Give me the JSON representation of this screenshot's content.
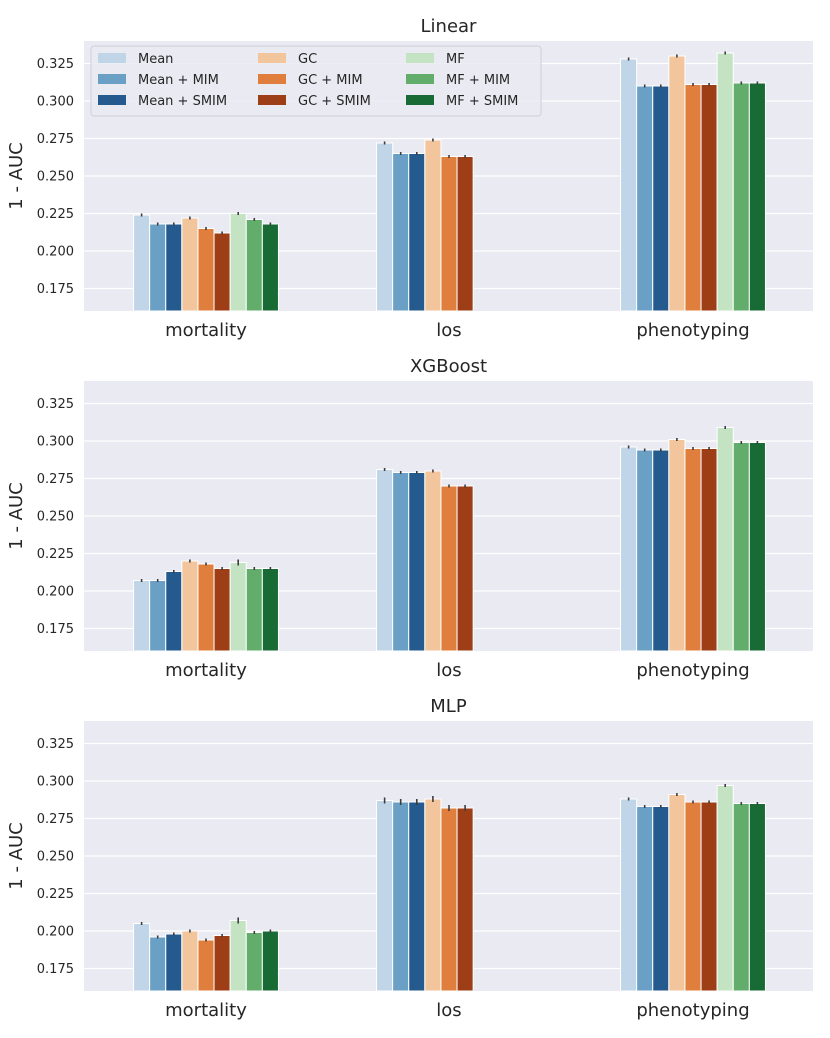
{
  "chart_data": [
    {
      "type": "bar",
      "title": "Linear",
      "xlabel": "",
      "ylabel": "1 - AUC",
      "ylim": [
        0.16,
        0.34
      ],
      "yticks": [
        0.175,
        0.2,
        0.225,
        0.25,
        0.275,
        0.3,
        0.325
      ],
      "ytick_labels": [
        "0.175",
        "0.200",
        "0.225",
        "0.250",
        "0.275",
        "0.300",
        "0.325"
      ],
      "categories": [
        "mortality",
        "los",
        "phenotyping"
      ],
      "grid": true,
      "series": [
        {
          "name": "Mean",
          "color": "#c0d5e8",
          "values": [
            0.224,
            0.272,
            0.328
          ],
          "errors": [
            0.001,
            0.001,
            0.001
          ]
        },
        {
          "name": "Mean + MIM",
          "color": "#6a9fc6",
          "values": [
            0.218,
            0.265,
            0.31
          ],
          "errors": [
            0.001,
            0.001,
            0.001
          ]
        },
        {
          "name": "Mean + SMIM",
          "color": "#255a8f",
          "values": [
            0.218,
            0.265,
            0.31
          ],
          "errors": [
            0.001,
            0.001,
            0.001
          ]
        },
        {
          "name": "GC",
          "color": "#f2c59c",
          "values": [
            0.222,
            0.274,
            0.33
          ],
          "errors": [
            0.001,
            0.001,
            0.001
          ]
        },
        {
          "name": "GC + MIM",
          "color": "#e07f3d",
          "values": [
            0.215,
            0.263,
            0.311
          ],
          "errors": [
            0.001,
            0.001,
            0.001
          ]
        },
        {
          "name": "GC + SMIM",
          "color": "#9e3e16",
          "values": [
            0.212,
            0.263,
            0.311
          ],
          "errors": [
            0.001,
            0.001,
            0.001
          ]
        },
        {
          "name": "MF",
          "color": "#c4e3c2",
          "values": [
            0.225,
            null,
            0.332
          ],
          "errors": [
            0.001,
            0,
            0.001
          ]
        },
        {
          "name": "MF + MIM",
          "color": "#62ad6b",
          "values": [
            0.221,
            null,
            0.312
          ],
          "errors": [
            0.001,
            0,
            0.001
          ]
        },
        {
          "name": "MF + SMIM",
          "color": "#186b34",
          "values": [
            0.218,
            null,
            0.312
          ],
          "errors": [
            0.001,
            0,
            0.001
          ]
        }
      ],
      "legend": {
        "position": "top-left",
        "columns": 3,
        "entries": [
          "Mean",
          "Mean + MIM",
          "Mean + SMIM",
          "GC",
          "GC + MIM",
          "GC + SMIM",
          "MF",
          "MF + MIM",
          "MF + SMIM"
        ]
      }
    },
    {
      "type": "bar",
      "title": "XGBoost",
      "xlabel": "",
      "ylabel": "1 - AUC",
      "ylim": [
        0.16,
        0.34
      ],
      "yticks": [
        0.175,
        0.2,
        0.225,
        0.25,
        0.275,
        0.3,
        0.325
      ],
      "ytick_labels": [
        "0.175",
        "0.200",
        "0.225",
        "0.250",
        "0.275",
        "0.300",
        "0.325"
      ],
      "categories": [
        "mortality",
        "los",
        "phenotyping"
      ],
      "grid": true,
      "series": [
        {
          "name": "Mean",
          "color": "#c0d5e8",
          "values": [
            0.207,
            0.281,
            0.296
          ],
          "errors": [
            0.001,
            0.001,
            0.001
          ]
        },
        {
          "name": "Mean + MIM",
          "color": "#6a9fc6",
          "values": [
            0.207,
            0.279,
            0.294
          ],
          "errors": [
            0.001,
            0.001,
            0.001
          ]
        },
        {
          "name": "Mean + SMIM",
          "color": "#255a8f",
          "values": [
            0.213,
            0.279,
            0.294
          ],
          "errors": [
            0.001,
            0.001,
            0.001
          ]
        },
        {
          "name": "GC",
          "color": "#f2c59c",
          "values": [
            0.22,
            0.28,
            0.301
          ],
          "errors": [
            0.001,
            0.001,
            0.001
          ]
        },
        {
          "name": "GC + MIM",
          "color": "#e07f3d",
          "values": [
            0.218,
            0.27,
            0.295
          ],
          "errors": [
            0.001,
            0.001,
            0.001
          ]
        },
        {
          "name": "GC + SMIM",
          "color": "#9e3e16",
          "values": [
            0.215,
            0.27,
            0.295
          ],
          "errors": [
            0.001,
            0.001,
            0.001
          ]
        },
        {
          "name": "MF",
          "color": "#c4e3c2",
          "values": [
            0.219,
            null,
            0.309
          ],
          "errors": [
            0.002,
            0,
            0.001
          ]
        },
        {
          "name": "MF + MIM",
          "color": "#62ad6b",
          "values": [
            0.215,
            null,
            0.299
          ],
          "errors": [
            0.001,
            0,
            0.001
          ]
        },
        {
          "name": "MF + SMIM",
          "color": "#186b34",
          "values": [
            0.215,
            null,
            0.299
          ],
          "errors": [
            0.001,
            0,
            0.001
          ]
        }
      ]
    },
    {
      "type": "bar",
      "title": "MLP",
      "xlabel": "",
      "ylabel": "1 - AUC",
      "ylim": [
        0.16,
        0.34
      ],
      "yticks": [
        0.175,
        0.2,
        0.225,
        0.25,
        0.275,
        0.3,
        0.325
      ],
      "ytick_labels": [
        "0.175",
        "0.200",
        "0.225",
        "0.250",
        "0.275",
        "0.300",
        "0.325"
      ],
      "categories": [
        "mortality",
        "los",
        "phenotyping"
      ],
      "grid": true,
      "series": [
        {
          "name": "Mean",
          "color": "#c0d5e8",
          "values": [
            0.205,
            0.287,
            0.288
          ],
          "errors": [
            0.001,
            0.002,
            0.001
          ]
        },
        {
          "name": "Mean + MIM",
          "color": "#6a9fc6",
          "values": [
            0.196,
            0.286,
            0.283
          ],
          "errors": [
            0.001,
            0.002,
            0.001
          ]
        },
        {
          "name": "Mean + SMIM",
          "color": "#255a8f",
          "values": [
            0.198,
            0.286,
            0.283
          ],
          "errors": [
            0.001,
            0.002,
            0.001
          ]
        },
        {
          "name": "GC",
          "color": "#f2c59c",
          "values": [
            0.2,
            0.288,
            0.291
          ],
          "errors": [
            0.001,
            0.002,
            0.001
          ]
        },
        {
          "name": "GC + MIM",
          "color": "#e07f3d",
          "values": [
            0.194,
            0.282,
            0.286
          ],
          "errors": [
            0.001,
            0.002,
            0.001
          ]
        },
        {
          "name": "GC + SMIM",
          "color": "#9e3e16",
          "values": [
            0.197,
            0.282,
            0.286
          ],
          "errors": [
            0.001,
            0.002,
            0.001
          ]
        },
        {
          "name": "MF",
          "color": "#c4e3c2",
          "values": [
            0.207,
            null,
            0.297
          ],
          "errors": [
            0.002,
            0,
            0.001
          ]
        },
        {
          "name": "MF + MIM",
          "color": "#62ad6b",
          "values": [
            0.199,
            null,
            0.285
          ],
          "errors": [
            0.001,
            0,
            0.001
          ]
        },
        {
          "name": "MF + SMIM",
          "color": "#186b34",
          "values": [
            0.2,
            null,
            0.285
          ],
          "errors": [
            0.001,
            0,
            0.001
          ]
        }
      ]
    }
  ]
}
